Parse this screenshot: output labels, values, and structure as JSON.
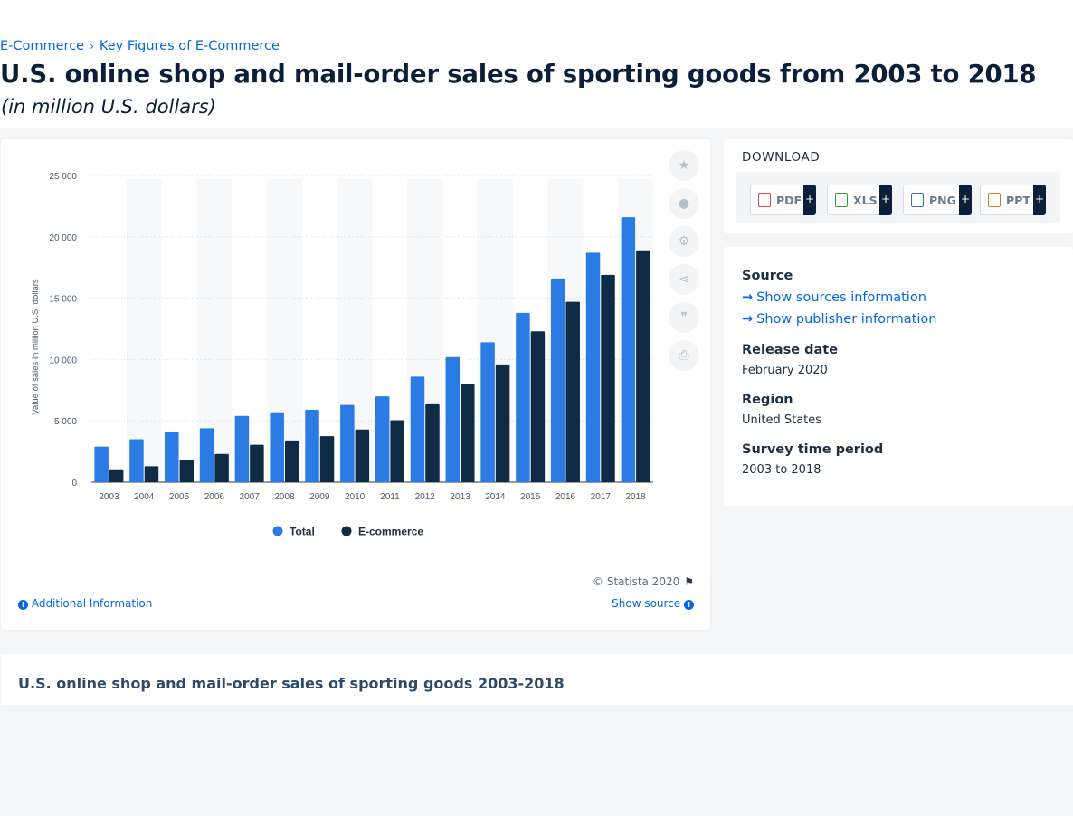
{
  "breadcrumb": [
    {
      "label": "E-Commerce"
    },
    {
      "label": "Key Figures of E-Commerce"
    }
  ],
  "breadcrumb_separator": "›",
  "title": "U.S. online shop and mail-order sales of sporting goods from 2003 to 2018",
  "subtitle": "(in million U.S. dollars)",
  "chart_data": {
    "type": "bar",
    "categories": [
      "2003",
      "2004",
      "2005",
      "2006",
      "2007",
      "2008",
      "2009",
      "2010",
      "2011",
      "2012",
      "2013",
      "2014",
      "2015",
      "2016",
      "2017",
      "2018"
    ],
    "series": [
      {
        "name": "Total",
        "color": "#2b7be5",
        "values": [
          2900,
          3500,
          4100,
          4400,
          5400,
          5700,
          5900,
          6300,
          7000,
          8600,
          10200,
          11400,
          13800,
          16600,
          18700,
          21600
        ]
      },
      {
        "name": "E-commerce",
        "color": "#0f2b46",
        "values": [
          1050,
          1300,
          1800,
          2300,
          3050,
          3400,
          3750,
          4300,
          5050,
          6350,
          8000,
          9600,
          12300,
          14700,
          16900,
          18900
        ]
      }
    ],
    "ylabel": "Value of sales in million U.S. dollars",
    "ylim": [
      0,
      25000
    ],
    "yticks": [
      0,
      5000,
      10000,
      15000,
      20000,
      25000
    ],
    "ytick_labels": [
      "0",
      "5 000",
      "10 000",
      "15 000",
      "20 000",
      "25 000"
    ],
    "grid": true,
    "legend_position": "bottom-center"
  },
  "tools": [
    {
      "name": "favorite",
      "icon": "star-icon",
      "glyph": "★"
    },
    {
      "name": "notification",
      "icon": "bell-icon",
      "glyph": "●"
    },
    {
      "name": "settings",
      "icon": "gear-icon",
      "glyph": "⚙"
    },
    {
      "name": "share",
      "icon": "share-icon",
      "glyph": "⋖"
    },
    {
      "name": "cite",
      "icon": "quote-icon",
      "glyph": "❞"
    },
    {
      "name": "print",
      "icon": "print-icon",
      "glyph": "⎙"
    }
  ],
  "copyright": "© Statista 2020",
  "additional_info": "Additional Information",
  "show_source": "Show source",
  "download": {
    "title": "DOWNLOAD",
    "formats": [
      {
        "label": "PDF",
        "icon_color": "#e0443b"
      },
      {
        "label": "XLS",
        "icon_color": "#3e9d3a"
      },
      {
        "label": "PNG",
        "icon_color": "#3b6fb6"
      },
      {
        "label": "PPT",
        "icon_color": "#e07a22"
      }
    ],
    "plus": "+"
  },
  "meta": {
    "source_heading": "Source",
    "show_sources": "Show sources information",
    "show_publisher": "Show publisher information",
    "release_heading": "Release date",
    "release_value": "February 2020",
    "region_heading": "Region",
    "region_value": "United States",
    "period_heading": "Survey time period",
    "period_value": "2003 to 2018"
  },
  "description_title": "U.S. online shop and mail-order sales of sporting goods 2003-2018"
}
